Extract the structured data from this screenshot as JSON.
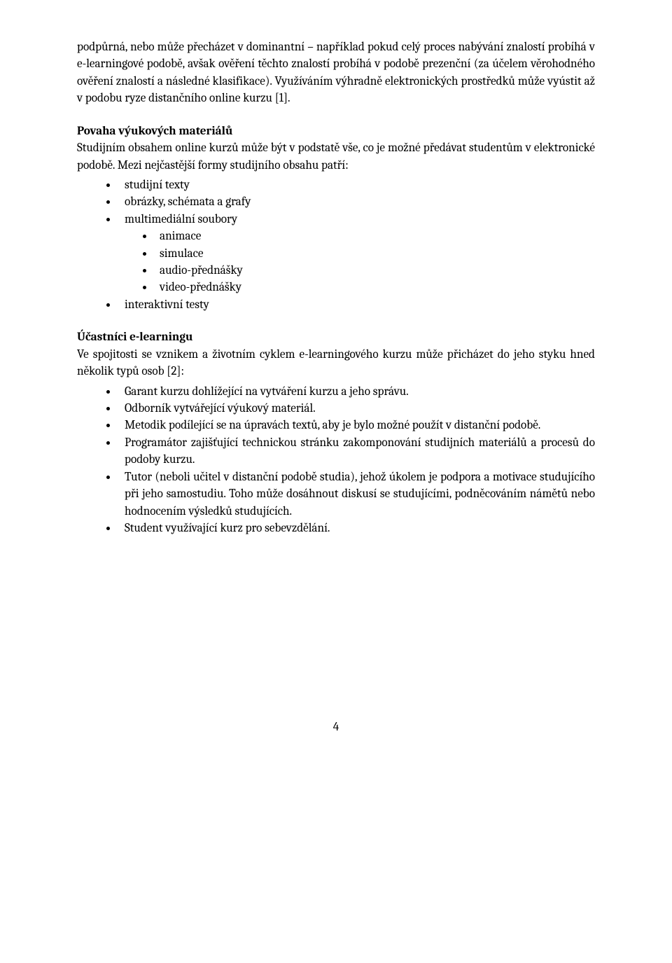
{
  "intro": {
    "p1": "podpůrná, nebo může přecházet v dominantní – například pokud celý proces nabývání znalostí probíhá v e-learningové podobě, avšak ověření těchto znalostí probíhá v podobě prezenční (za účelem věrohodného ověření znalostí a následné klasifikace). Využíváním výhradně elektronických prostředků může vyústit až v podobu ryze distančního online kurzu [1]."
  },
  "section1": {
    "heading": "Povaha výukových materiálů",
    "lead": "Studijním obsahem online kurzů může být v podstatě vše, co je možné předávat studentům v elektronické podobě. Mezi nejčastější formy studijního obsahu patří:",
    "items": [
      "studijní texty",
      "obrázky, schémata a grafy",
      "multimediální soubory",
      "interaktivní testy"
    ],
    "subitems": [
      "animace",
      "simulace",
      "audio-přednášky",
      "video-přednášky"
    ]
  },
  "section2": {
    "heading": "Účastníci e-learningu",
    "lead": "Ve spojitosti se vznikem a životním cyklem e-learningového kurzu může přicházet do jeho styku hned několik typů osob [2]:",
    "items": [
      "Garant kurzu dohlížející na vytváření kurzu a jeho správu.",
      "Odborník vytvářející výukový materiál.",
      "Metodik podílející se na úpravách textů, aby je bylo možné použít v distanční podobě.",
      "Programátor zajišťující technickou stránku zakomponování studijních materiálů a procesů do podoby kurzu.",
      "Tutor (neboli učitel v distanční podobě studia), jehož úkolem je podpora a motivace studujícího při jeho samostudiu. Toho může dosáhnout diskusí se studujícími, podněcováním námětů nebo hodnocením výsledků studujících.",
      "Student využívající kurz pro sebevzdělání."
    ]
  },
  "page_number": "4"
}
